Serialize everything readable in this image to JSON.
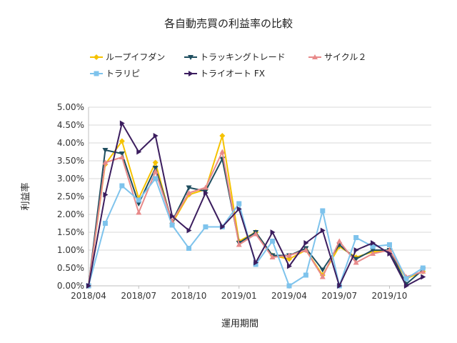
{
  "chart_data": {
    "type": "line",
    "title": "各自動売買の利益率の比較",
    "xlabel": "運用期間",
    "ylabel": "利益率",
    "x": [
      "2018/04",
      "2018/05",
      "2018/06",
      "2018/07",
      "2018/08",
      "2018/09",
      "2018/10",
      "2018/11",
      "2018/12",
      "2019/01",
      "2019/02",
      "2019/03",
      "2019/04",
      "2019/05",
      "2019/06",
      "2019/07",
      "2019/08",
      "2019/09",
      "2019/10",
      "2019/11",
      "2019/12"
    ],
    "x_tick_labels": [
      "2018/04",
      "2018/07",
      "2018/10",
      "2019/01",
      "2019/04",
      "2019/07",
      "2019/10"
    ],
    "x_tick_positions": [
      0,
      3,
      6,
      9,
      12,
      15,
      18
    ],
    "y_tick_labels": [
      "0.00%",
      "0.50%",
      "1.00%",
      "1.50%",
      "2.00%",
      "2.50%",
      "3.00%",
      "3.50%",
      "4.00%",
      "4.50%",
      "5.00%"
    ],
    "ylim": [
      0,
      5.0
    ],
    "grid": "horizontal",
    "legend_position": "top",
    "series": [
      {
        "name": "ループイフダン",
        "color": "#f5c200",
        "marker": "diamond",
        "values": [
          0,
          3.4,
          4.05,
          2.45,
          3.45,
          1.75,
          2.55,
          2.7,
          4.2,
          1.25,
          1.5,
          0.85,
          0.75,
          1.0,
          0.3,
          1.1,
          0.8,
          0.95,
          1.0,
          0.2,
          0.4
        ]
      },
      {
        "name": "トラッキングトレード",
        "color": "#1f4e5f",
        "marker": "triangle-down",
        "values": [
          0,
          3.8,
          3.7,
          2.3,
          3.3,
          1.8,
          2.75,
          2.65,
          3.55,
          1.2,
          1.5,
          0.85,
          0.85,
          1.05,
          0.45,
          1.15,
          0.75,
          1.0,
          1.0,
          0.05,
          0.45
        ]
      },
      {
        "name": "サイクル２",
        "color": "#e88a8a",
        "marker": "triangle-up",
        "values": [
          0,
          3.45,
          3.6,
          2.05,
          3.2,
          1.8,
          2.6,
          2.75,
          3.75,
          1.15,
          1.45,
          0.8,
          0.85,
          1.0,
          0.25,
          1.25,
          0.65,
          0.9,
          1.0,
          0.25,
          0.4
        ]
      },
      {
        "name": "トラリピ",
        "color": "#7ec3ec",
        "marker": "square",
        "values": [
          0,
          1.75,
          2.8,
          2.4,
          3.0,
          1.7,
          1.05,
          1.65,
          1.65,
          2.3,
          0.6,
          1.25,
          0.0,
          0.3,
          2.1,
          0.0,
          1.35,
          1.1,
          1.15,
          0.2,
          0.5
        ]
      },
      {
        "name": "トライオート FX",
        "color": "#3b1d5e",
        "marker": "triangle-right",
        "values": [
          0,
          2.55,
          4.55,
          3.75,
          4.2,
          1.95,
          1.55,
          2.6,
          1.65,
          2.15,
          0.65,
          1.5,
          0.55,
          1.2,
          1.55,
          0.0,
          1.0,
          1.2,
          0.9,
          0.0,
          0.25
        ]
      }
    ]
  }
}
